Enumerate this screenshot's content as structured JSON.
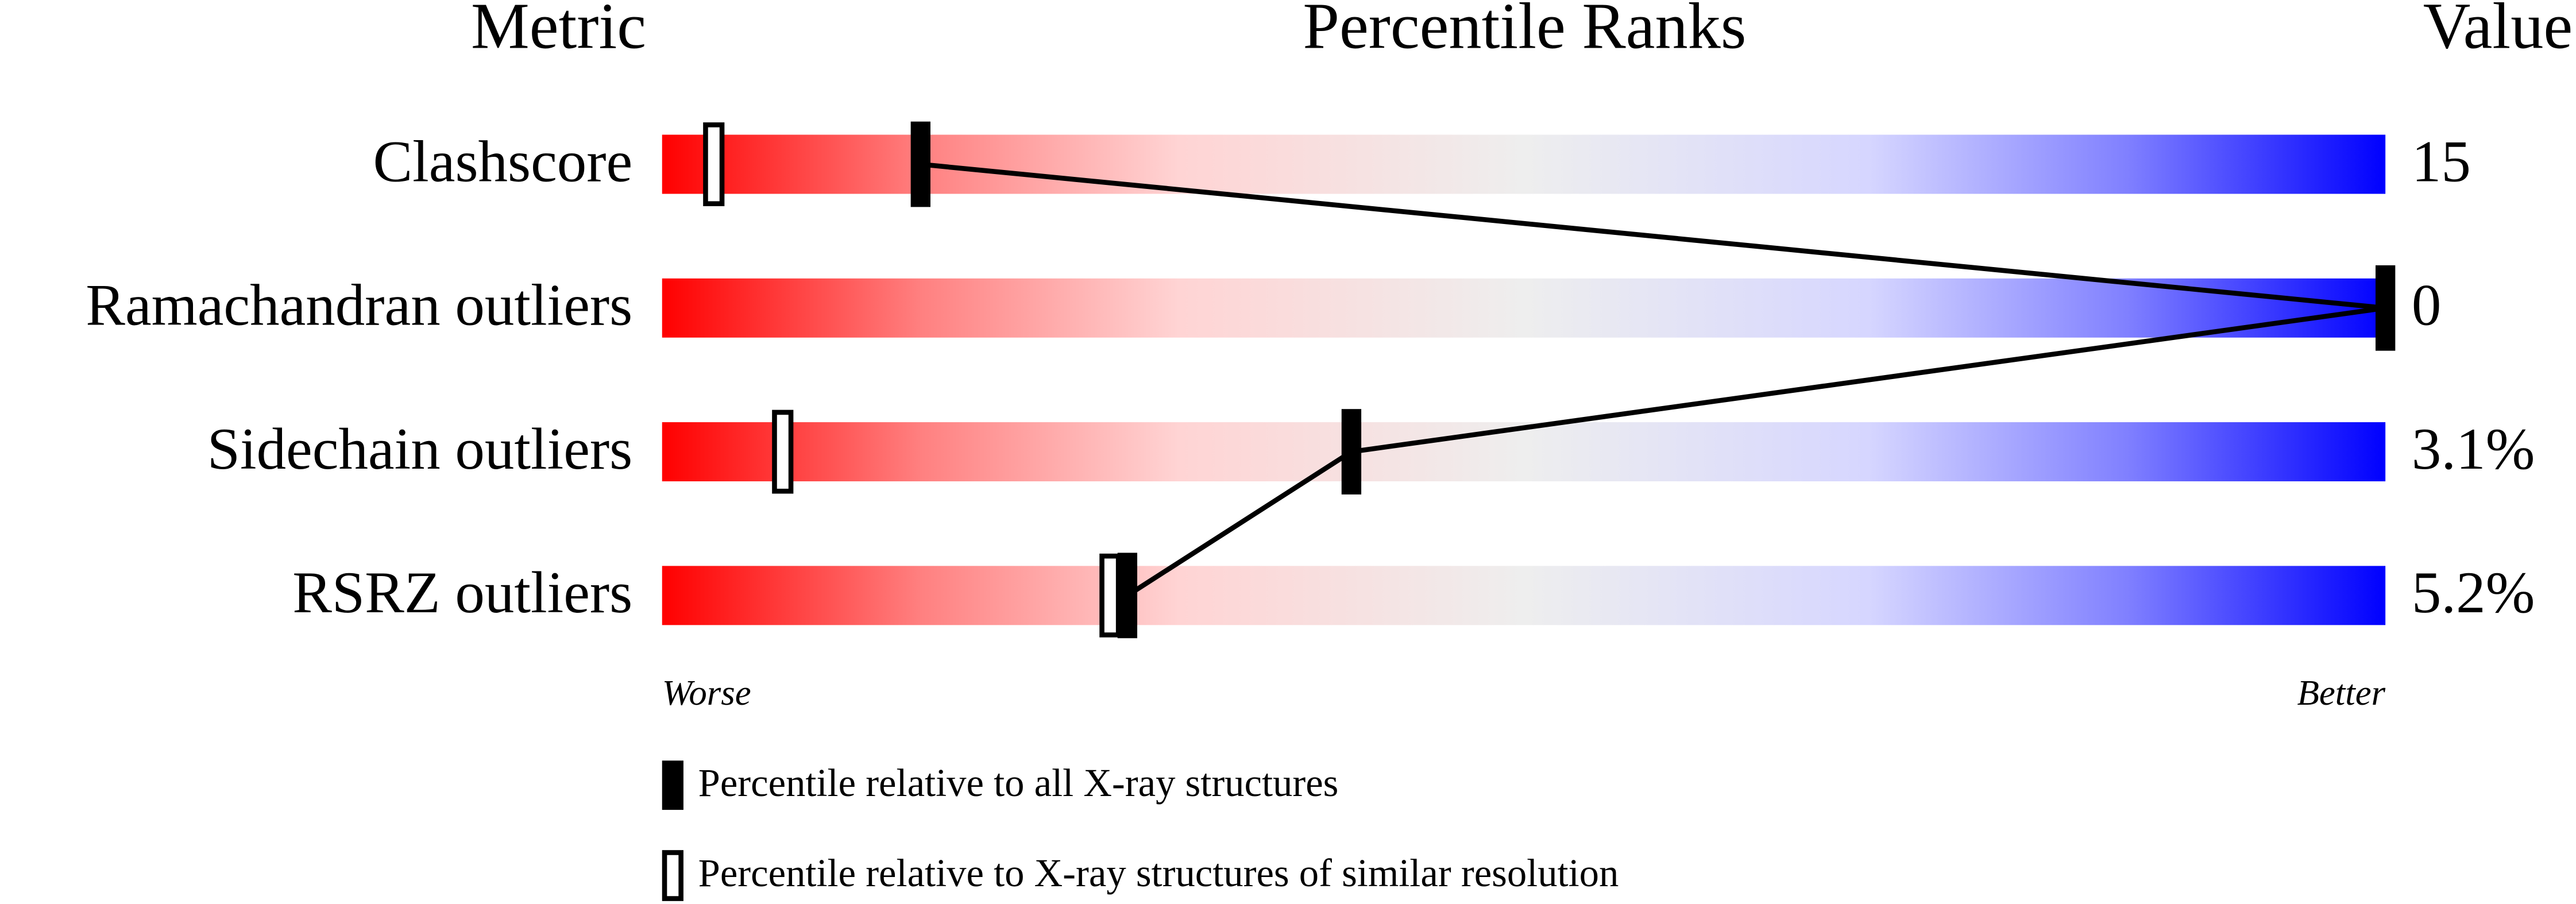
{
  "chart_data": {
    "type": "percentile_slider",
    "column_headers": [
      "Metric",
      "Percentile Ranks",
      "Value"
    ],
    "categories": [
      "Clashscore",
      "Ramachandran outliers",
      "Sidechain outliers",
      "RSRZ outliers"
    ],
    "metric_values": [
      "15",
      "0",
      "3.1%",
      "5.2%"
    ],
    "xlim": [
      0,
      100
    ],
    "x_left_label": "Worse",
    "x_right_label": "Better",
    "series": [
      {
        "name": "Percentile relative to all X-ray structures",
        "color": "#000000",
        "style": "filled",
        "values": [
          15,
          100,
          40,
          27
        ]
      },
      {
        "name": "Percentile relative to X-ray structures of similar resolution",
        "color": "#000000",
        "style": "open",
        "values": [
          3,
          null,
          7,
          26
        ]
      }
    ]
  }
}
